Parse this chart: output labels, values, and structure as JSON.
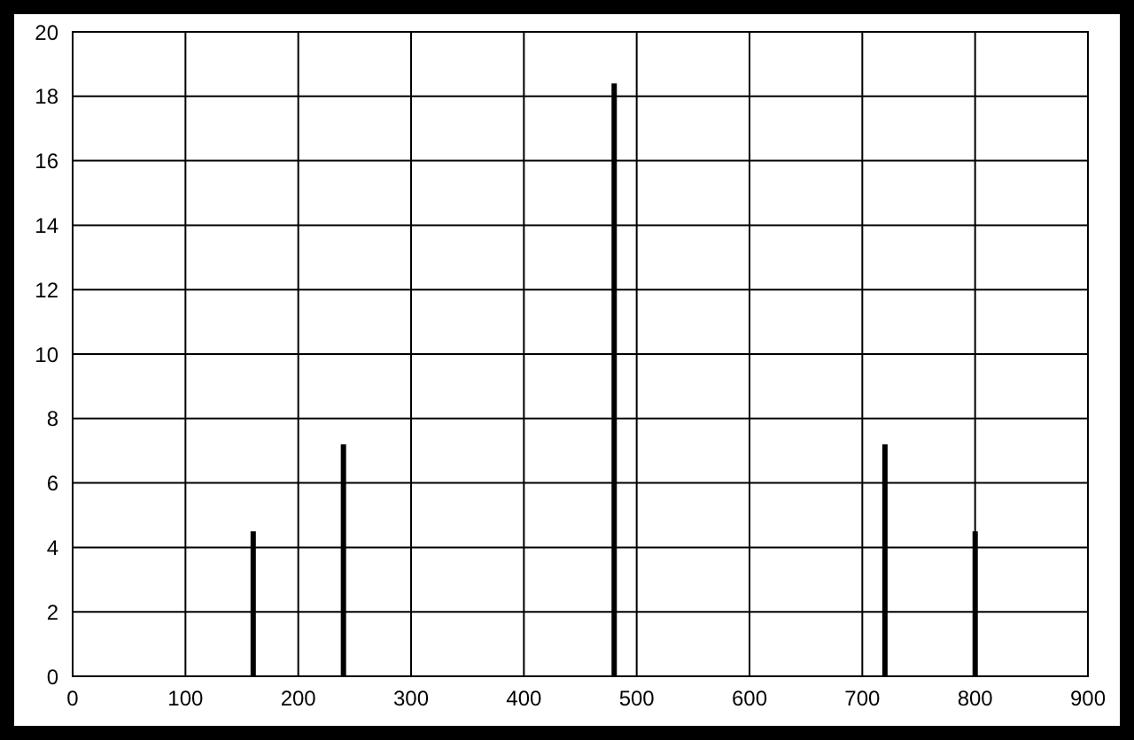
{
  "chart_data": {
    "type": "bar",
    "x": [
      160,
      240,
      480,
      720,
      800
    ],
    "values": [
      4.5,
      7.2,
      18.4,
      7.2,
      4.5
    ],
    "color": "#000000",
    "xlim": [
      0,
      900
    ],
    "xticks": [
      0,
      100,
      200,
      300,
      400,
      500,
      600,
      700,
      800,
      900
    ],
    "ylim": [
      0,
      20
    ],
    "yticks": [
      0,
      2,
      4,
      6,
      8,
      10,
      12,
      14,
      16,
      18,
      20
    ],
    "grid": true
  }
}
